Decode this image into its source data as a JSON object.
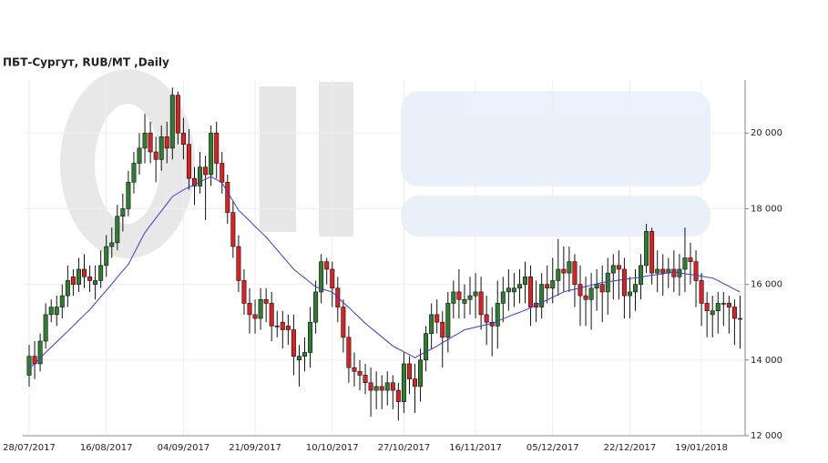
{
  "chart_data": {
    "type": "candlestick",
    "title": "ПБТ-Сургут,  RUB/MT ,Daily",
    "categories": [
      "28/07/2017",
      null,
      null,
      null,
      null,
      null,
      null,
      null,
      null,
      null,
      null,
      null,
      null,
      null,
      "16/08/2017",
      null,
      null,
      null,
      null,
      null,
      null,
      null,
      null,
      null,
      null,
      null,
      null,
      null,
      "04/09/2017",
      null,
      null,
      null,
      null,
      null,
      null,
      null,
      null,
      null,
      null,
      null,
      null,
      "21/09/2017",
      null,
      null,
      null,
      null,
      null,
      null,
      null,
      null,
      null,
      null,
      null,
      null,
      null,
      "10/10/2017",
      null,
      null,
      null,
      null,
      null,
      null,
      null,
      null,
      null,
      null,
      null,
      null,
      "27/10/2017",
      null,
      null,
      null,
      null,
      null,
      null,
      null,
      null,
      null,
      null,
      null,
      null,
      "16/11/2017",
      null,
      null,
      null,
      null,
      null,
      null,
      null,
      null,
      null,
      null,
      null,
      null,
      null,
      "05/12/2017",
      null,
      null,
      null,
      null,
      null,
      null,
      null,
      null,
      null,
      null,
      null,
      null,
      null,
      "22/12/2017",
      null,
      null,
      null,
      null,
      null,
      null,
      null,
      null,
      null,
      null,
      null,
      null,
      "19/01/2018",
      null,
      null,
      null,
      null,
      null,
      null,
      null
    ],
    "open": [
      13600,
      14100,
      13900,
      14500,
      15200,
      15200,
      15400,
      15700,
      16200,
      16000,
      16400,
      16200,
      16000,
      16100,
      16500,
      17000,
      17100,
      17800,
      18000,
      18700,
      19200,
      19600,
      20000,
      19500,
      19300,
      19900,
      19600,
      21000,
      20000,
      19700,
      18800,
      18600,
      19100,
      18900,
      20000,
      19200,
      18700,
      17900,
      17000,
      16100,
      15500,
      15200,
      15100,
      15600,
      15500,
      14900,
      15000,
      14900,
      14800,
      14000,
      14100,
      14200,
      15000,
      15800,
      16600,
      16400,
      15900,
      15400,
      14600,
      13800,
      13700,
      13600,
      13400,
      13200,
      13300,
      13200,
      13400,
      13200,
      12900,
      13900,
      13500,
      13300,
      14000,
      14700,
      15200,
      15000,
      14600,
      15500,
      15800,
      15500,
      15600,
      15700,
      15800,
      15200,
      15000,
      14900,
      15500,
      15800,
      15800,
      15900,
      16000,
      16200,
      15500,
      15400,
      16000,
      15900,
      16100,
      16400,
      16300,
      16600,
      16000,
      15700,
      15600,
      15900,
      16000,
      15800,
      16300,
      16500,
      16400,
      15700,
      15800,
      16000,
      16500,
      17400,
      16300,
      16400,
      16300,
      16400,
      16200,
      16400,
      16700,
      16600,
      16100,
      15500,
      15200,
      15300,
      15500,
      15500,
      15400,
      15100
    ],
    "high": [
      14400,
      14500,
      14700,
      15500,
      15600,
      15700,
      16000,
      16500,
      16400,
      16700,
      16800,
      16500,
      16500,
      16900,
      17300,
      17500,
      18100,
      18400,
      19000,
      19500,
      20000,
      20500,
      20300,
      19900,
      20200,
      20300,
      21200,
      21100,
      20400,
      20100,
      19100,
      19500,
      19400,
      20200,
      20300,
      19500,
      18900,
      18200,
      17300,
      16400,
      15900,
      15600,
      15900,
      15900,
      15800,
      15300,
      15300,
      15200,
      15200,
      14400,
      14600,
      15400,
      16100,
      16800,
      16700,
      16600,
      16200,
      15600,
      14900,
      14200,
      14000,
      13900,
      13800,
      13700,
      13600,
      13700,
      13600,
      13400,
      14200,
      14100,
      13900,
      14300,
      14900,
      15500,
      15600,
      15300,
      15800,
      16100,
      16400,
      16000,
      16200,
      16300,
      16200,
      15700,
      15400,
      16100,
      16200,
      16400,
      16300,
      16400,
      16600,
      16500,
      16100,
      16300,
      16500,
      16700,
      17200,
      17000,
      17000,
      16800,
      16500,
      16200,
      16300,
      16400,
      16500,
      16700,
      16800,
      16900,
      16700,
      16200,
      16400,
      16800,
      17600,
      17500,
      16900,
      16800,
      16700,
      16900,
      16800,
      17500,
      17100,
      16900,
      16300,
      15800,
      15700,
      15800,
      15800,
      15700,
      15600,
      15700
    ],
    "low": [
      13300,
      13500,
      13700,
      14300,
      15000,
      14900,
      15100,
      15400,
      15700,
      15800,
      15900,
      15800,
      15600,
      15900,
      16200,
      16700,
      16900,
      17400,
      17800,
      18400,
      18900,
      19200,
      19200,
      18700,
      19000,
      19200,
      19300,
      19700,
      19300,
      18500,
      18100,
      18400,
      17700,
      18600,
      18800,
      18400,
      17600,
      16700,
      15800,
      15200,
      14700,
      14700,
      14800,
      15000,
      14500,
      14600,
      14300,
      14400,
      13600,
      13300,
      13700,
      13800,
      14700,
      15500,
      16000,
      15400,
      15000,
      14200,
      13400,
      13300,
      13200,
      13100,
      12500,
      12700,
      12700,
      12800,
      12700,
      12400,
      12600,
      13100,
      12600,
      12900,
      13700,
      14300,
      14700,
      13800,
      14200,
      15100,
      15100,
      15100,
      15200,
      15100,
      14800,
      14400,
      14100,
      14300,
      15000,
      15300,
      15400,
      15500,
      15500,
      14900,
      15000,
      15100,
      15500,
      15500,
      15700,
      15800,
      15800,
      15400,
      14900,
      14900,
      14800,
      15300,
      15000,
      15200,
      15600,
      15600,
      15100,
      15100,
      15300,
      15600,
      16300,
      16000,
      15800,
      15700,
      15900,
      15800,
      15700,
      15800,
      16000,
      15400,
      14900,
      14600,
      14600,
      14700,
      14900,
      14700,
      14400,
      14300
    ],
    "close": [
      14100,
      13900,
      14500,
      15200,
      15400,
      15400,
      15700,
      16100,
      16000,
      16400,
      16200,
      16100,
      16100,
      16500,
      17000,
      17100,
      17800,
      18000,
      18700,
      19200,
      19600,
      20000,
      19500,
      19300,
      19900,
      19600,
      21000,
      20000,
      19700,
      18800,
      18600,
      19100,
      18900,
      20000,
      19200,
      18700,
      17900,
      17000,
      16100,
      15500,
      15200,
      15100,
      15600,
      15500,
      14900,
      14900,
      14800,
      14800,
      14100,
      14100,
      14200,
      15000,
      15800,
      16600,
      16400,
      15900,
      15400,
      14600,
      13800,
      13700,
      13600,
      13400,
      13200,
      13300,
      13200,
      13400,
      13200,
      12900,
      13900,
      13500,
      13300,
      14000,
      14700,
      15200,
      15000,
      14600,
      15500,
      15800,
      15600,
      15600,
      15700,
      15800,
      15200,
      15000,
      14900,
      15500,
      15800,
      15900,
      15900,
      16000,
      16200,
      15400,
      15400,
      16000,
      15900,
      16100,
      16400,
      16300,
      16600,
      16000,
      15700,
      15600,
      15900,
      16000,
      15800,
      16300,
      16500,
      16400,
      15700,
      15800,
      16000,
      16500,
      17400,
      16300,
      16400,
      16300,
      16400,
      16200,
      16400,
      16700,
      16600,
      16100,
      15500,
      15300,
      15300,
      15500,
      15500,
      15400,
      15100,
      15100
    ],
    "moving_average": [
      13770,
      13910,
      14050,
      14200,
      14340,
      14480,
      14620,
      14760,
      14900,
      15050,
      15190,
      15330,
      15500,
      15670,
      15840,
      16010,
      16190,
      16360,
      16530,
      16810,
      17090,
      17370,
      17560,
      17750,
      17940,
      18130,
      18320,
      18410,
      18500,
      18570,
      18640,
      18710,
      18780,
      18850,
      18770,
      18680,
      18440,
      18200,
      17960,
      17820,
      17680,
      17530,
      17390,
      17250,
      17080,
      16910,
      16740,
      16570,
      16400,
      16280,
      16170,
      16050,
      15930,
      15890,
      15840,
      15800,
      15660,
      15520,
      15390,
      15250,
      15110,
      14970,
      14850,
      14730,
      14610,
      14490,
      14370,
      14290,
      14220,
      14140,
      14060,
      14140,
      14220,
      14290,
      14370,
      14460,
      14540,
      14630,
      14710,
      14800,
      14830,
      14870,
      14900,
      14940,
      14970,
      15030,
      15090,
      15150,
      15210,
      15260,
      15320,
      15380,
      15450,
      15520,
      15590,
      15660,
      15730,
      15800,
      15840,
      15870,
      15910,
      15940,
      15980,
      16010,
      16050,
      16070,
      16090,
      16110,
      16130,
      16150,
      16170,
      16190,
      16220,
      16240,
      16260,
      16280,
      16310,
      16330,
      16310,
      16280,
      16260,
      16240,
      16220,
      16190,
      16170,
      16100,
      16020,
      15950,
      15870,
      15800
    ],
    "up_color": "#2f7d2f",
    "down_color": "#dd2020",
    "ma_color": "#3a3ad0",
    "ylim": [
      12000,
      21400
    ],
    "yticks": [
      {
        "value": 12000,
        "label": "12 000"
      },
      {
        "value": 14000,
        "label": "14 000"
      },
      {
        "value": 16000,
        "label": "16 000"
      },
      {
        "value": 18000,
        "label": "18 000"
      },
      {
        "value": 20000,
        "label": "20 000"
      }
    ],
    "grid": true
  }
}
